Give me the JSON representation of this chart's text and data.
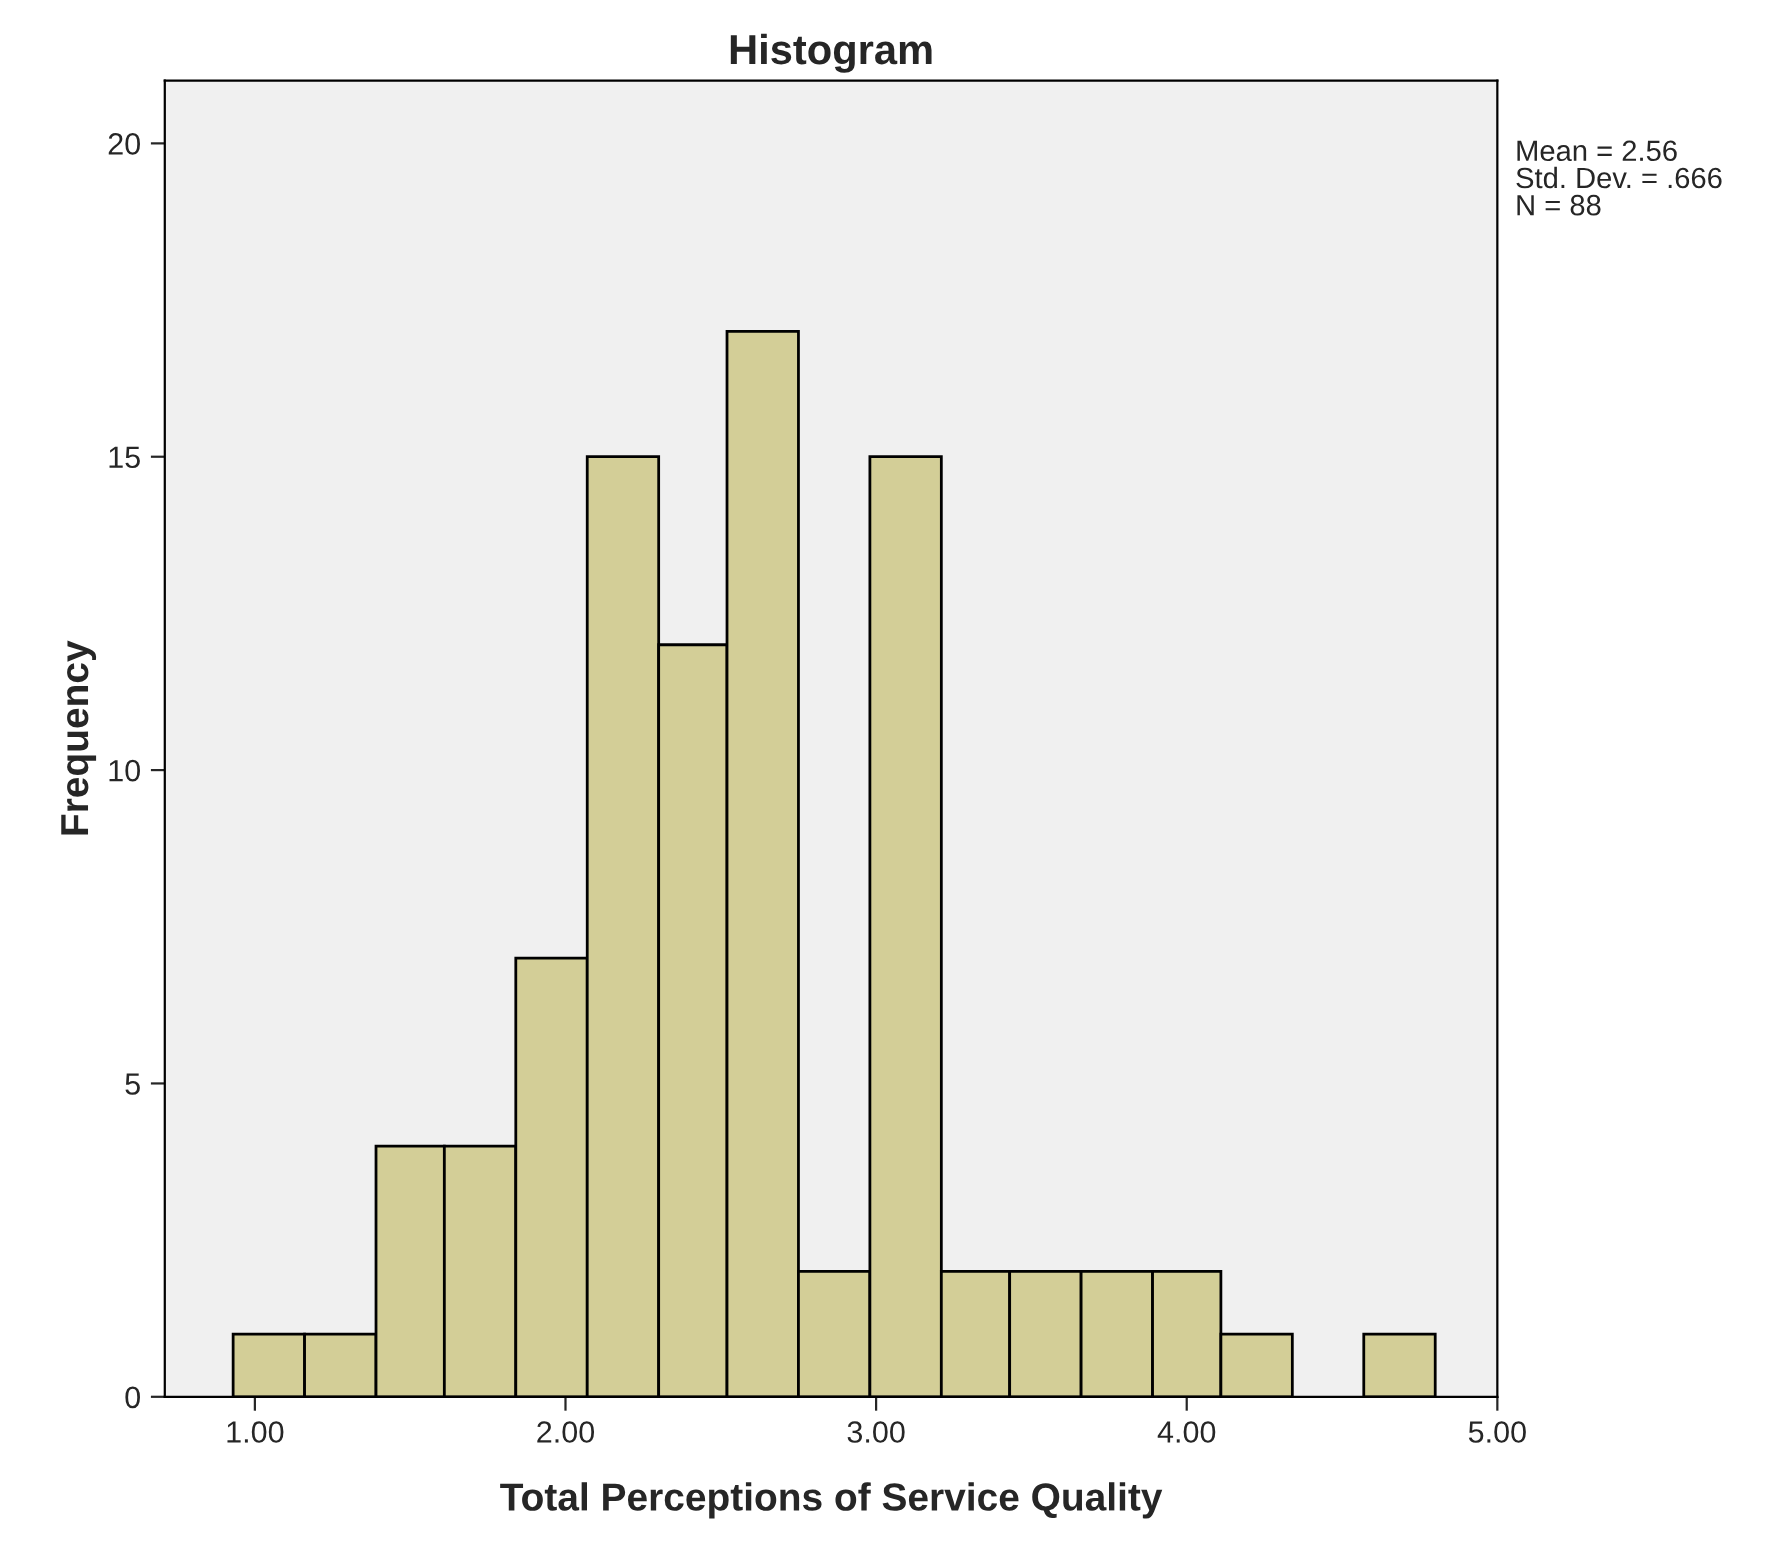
{
  "chart_data": {
    "type": "histogram",
    "title": "Histogram",
    "xlabel": "Total Perceptions of Service Quality",
    "ylabel": "Frequency",
    "bins": [
      0.93,
      1.16,
      1.39,
      1.61,
      1.84,
      2.07,
      2.3,
      2.52,
      2.75,
      2.98,
      3.21,
      3.43,
      3.66,
      3.89,
      4.11,
      4.34,
      4.57,
      4.8
    ],
    "values": [
      1,
      1,
      4,
      4,
      7,
      15,
      12,
      17,
      2,
      15,
      2,
      2,
      2,
      2,
      1,
      0,
      1
    ],
    "color": "#d3ce97",
    "xlim": [
      0.71,
      5.0
    ],
    "xticks": [
      {
        "value": 1,
        "label": "1.00"
      },
      {
        "value": 2,
        "label": "2.00"
      },
      {
        "value": 3,
        "label": "3.00"
      },
      {
        "value": 4,
        "label": "4.00"
      },
      {
        "value": 5,
        "label": "5.00"
      }
    ],
    "ylim": [
      0,
      21
    ],
    "yticks": [
      0,
      5,
      10,
      15,
      20
    ],
    "grid": false,
    "annotations": [
      "Mean = 2.56",
      "Std. Dev. = .666",
      "N = 88"
    ]
  }
}
